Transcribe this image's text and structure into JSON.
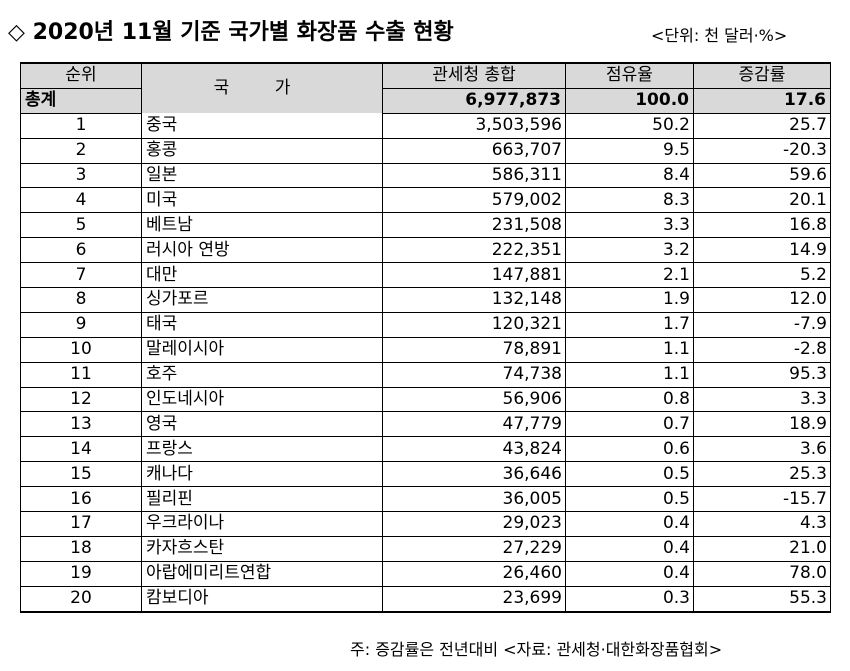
{
  "title": "◇ 2020년 11월 기준 국가별 화장품 수출 현황",
  "unit": "<단위: 천 달러·%>",
  "header": {
    "rank": "순위",
    "country": "국 가",
    "exports": "관세청 총합",
    "share": "점유율",
    "growth": "증감률",
    "total_label": "총계",
    "total_exports": "6,977,873",
    "total_share": "100.0",
    "total_growth": "17.6"
  },
  "rows": [
    {
      "rank": "1",
      "country": "중국",
      "exports": "3,503,596",
      "share": "50.2",
      "growth": "25.7"
    },
    {
      "rank": "2",
      "country": "홍콩",
      "exports": "663,707",
      "share": "9.5",
      "growth": "-20.3"
    },
    {
      "rank": "3",
      "country": "일본",
      "exports": "586,311",
      "share": "8.4",
      "growth": "59.6"
    },
    {
      "rank": "4",
      "country": "미국",
      "exports": "579,002",
      "share": "8.3",
      "growth": "20.1"
    },
    {
      "rank": "5",
      "country": "베트남",
      "exports": "231,508",
      "share": "3.3",
      "growth": "16.8"
    },
    {
      "rank": "6",
      "country": "러시아 연방",
      "exports": "222,351",
      "share": "3.2",
      "growth": "14.9"
    },
    {
      "rank": "7",
      "country": "대만",
      "exports": "147,881",
      "share": "2.1",
      "growth": "5.2"
    },
    {
      "rank": "8",
      "country": "싱가포르",
      "exports": "132,148",
      "share": "1.9",
      "growth": "12.0"
    },
    {
      "rank": "9",
      "country": "태국",
      "exports": "120,321",
      "share": "1.7",
      "growth": "-7.9"
    },
    {
      "rank": "10",
      "country": "말레이시아",
      "exports": "78,891",
      "share": "1.1",
      "growth": "-2.8"
    },
    {
      "rank": "11",
      "country": "호주",
      "exports": "74,738",
      "share": "1.1",
      "growth": "95.3"
    },
    {
      "rank": "12",
      "country": "인도네시아",
      "exports": "56,906",
      "share": "0.8",
      "growth": "3.3"
    },
    {
      "rank": "13",
      "country": "영국",
      "exports": "47,779",
      "share": "0.7",
      "growth": "18.9"
    },
    {
      "rank": "14",
      "country": "프랑스",
      "exports": "43,824",
      "share": "0.6",
      "growth": "3.6"
    },
    {
      "rank": "15",
      "country": "캐나다",
      "exports": "36,646",
      "share": "0.5",
      "growth": "25.3"
    },
    {
      "rank": "16",
      "country": "필리핀",
      "exports": "36,005",
      "share": "0.5",
      "growth": "-15.7"
    },
    {
      "rank": "17",
      "country": "우크라이나",
      "exports": "29,023",
      "share": "0.4",
      "growth": "4.3"
    },
    {
      "rank": "18",
      "country": "카자흐스탄",
      "exports": "27,229",
      "share": "0.4",
      "growth": "21.0"
    },
    {
      "rank": "19",
      "country": "아랍에미리트연합",
      "exports": "26,460",
      "share": "0.4",
      "growth": "78.0"
    },
    {
      "rank": "20",
      "country": "캄보디아",
      "exports": "23,699",
      "share": "0.3",
      "growth": "55.3"
    }
  ],
  "footnote": "주: 증감률은 전년대비 <자료: 관세청·대한화장품협회>"
}
